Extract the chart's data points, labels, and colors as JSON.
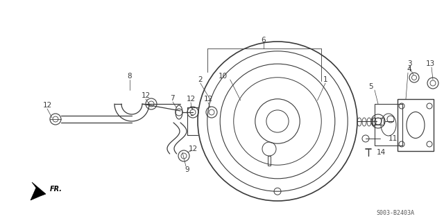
{
  "bg_color": "#ffffff",
  "line_color": "#3a3a3a",
  "lw_main": 1.0,
  "lw_thin": 0.6,
  "lw_thick": 1.5,
  "label_fontsize": 7.0,
  "watermark_text": "S003-B2403A",
  "fr_text": "FR."
}
